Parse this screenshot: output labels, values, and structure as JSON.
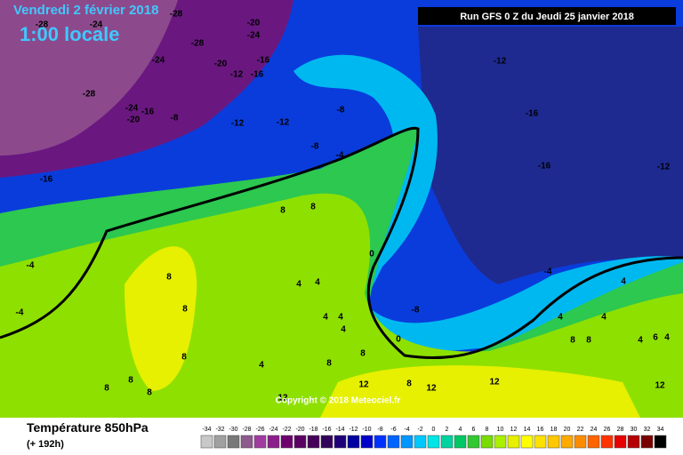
{
  "header": {
    "date": "Vendredi 2 février 2018",
    "time": "1:00 locale",
    "run": "Run GFS 0 Z du Jeudi 25 janvier 2018"
  },
  "labels": [
    -28,
    -28,
    -24,
    -28,
    -20,
    -24,
    -24,
    -20,
    -16,
    -12,
    -16,
    -28,
    -24,
    -16,
    -8,
    -20,
    -12,
    -12,
    -8,
    -8,
    -4,
    -12,
    -16,
    -16,
    -12,
    -16,
    8,
    8,
    -4,
    -4,
    8,
    8,
    8,
    4,
    4,
    0,
    -4,
    -8,
    4,
    4,
    4,
    4,
    4,
    8,
    8,
    0,
    4,
    4,
    4,
    6,
    4,
    8,
    8,
    8,
    8,
    8,
    12,
    12,
    12,
    12,
    12,
    8
  ],
  "footer": {
    "title": "Température 850hPa",
    "lead": "(+ 192h)",
    "copyright": "Copyright © 2018 Meteociel.fr"
  },
  "scale": {
    "values": [
      -34,
      -32,
      -30,
      -28,
      -26,
      -24,
      -22,
      -20,
      -18,
      -16,
      -14,
      -12,
      -10,
      -8,
      -6,
      -4,
      -2,
      0,
      2,
      4,
      6,
      8,
      10,
      12,
      14,
      16,
      18,
      20,
      22,
      24,
      26,
      28,
      30,
      32,
      34
    ],
    "colors": [
      "#c8c8c8",
      "#a0a0a0",
      "#787878",
      "#8c5a8c",
      "#a03ca0",
      "#8c1e8c",
      "#6e006e",
      "#5a0064",
      "#46005a",
      "#32005a",
      "#1e0078",
      "#0000a0",
      "#0000c8",
      "#0032ff",
      "#0064ff",
      "#0096ff",
      "#00c8ff",
      "#00e6e6",
      "#00d2a0",
      "#00c864",
      "#32c832",
      "#78dc00",
      "#aaf000",
      "#e6f000",
      "#ffff00",
      "#ffe100",
      "#ffc800",
      "#ffaa00",
      "#ff8c00",
      "#ff6400",
      "#ff3200",
      "#e60000",
      "#b40000",
      "#780000",
      "#000000"
    ]
  }
}
